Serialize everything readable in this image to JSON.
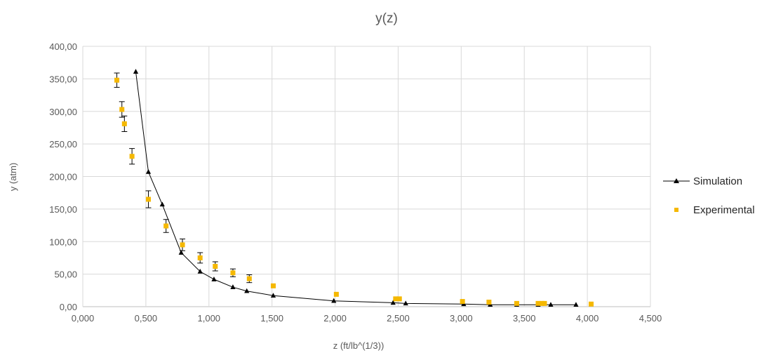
{
  "chart_data": {
    "type": "scatter",
    "title": "y(z)",
    "xlabel": "z (ft/lb^(1/3))",
    "ylabel": "y (atm)",
    "xlim": [
      0,
      4.5
    ],
    "ylim": [
      0,
      400
    ],
    "x_ticks": [
      "0,000",
      "0,500",
      "1,000",
      "1,500",
      "2,000",
      "2,500",
      "3,000",
      "3,500",
      "4,000",
      "4,500"
    ],
    "y_ticks": [
      "0,00",
      "50,00",
      "100,00",
      "150,00",
      "200,00",
      "250,00",
      "300,00",
      "350,00",
      "400,00"
    ],
    "x_tick_values": [
      0,
      0.5,
      1.0,
      1.5,
      2.0,
      2.5,
      3.0,
      3.5,
      4.0,
      4.5
    ],
    "y_tick_values": [
      0,
      50,
      100,
      150,
      200,
      250,
      300,
      350,
      400
    ],
    "grid": true,
    "legend": "right",
    "series": [
      {
        "name": "Simulation",
        "style": "line-with-triangle-markers",
        "color": "#000000",
        "x": [
          0.42,
          0.52,
          0.63,
          0.78,
          0.93,
          1.04,
          1.19,
          1.3,
          1.51,
          1.99,
          2.46,
          2.56,
          3.02,
          3.23,
          3.44,
          3.61,
          3.71,
          3.91
        ],
        "y": [
          361,
          207,
          157,
          83,
          54,
          42,
          30,
          24,
          17,
          9,
          6,
          5,
          4,
          3,
          3,
          3,
          3,
          3
        ]
      },
      {
        "name": "Experimental",
        "style": "square-markers-with-error-bars",
        "color": "#f5b800",
        "x": [
          0.27,
          0.31,
          0.33,
          0.39,
          0.52,
          0.66,
          0.79,
          0.93,
          1.05,
          1.19,
          1.32,
          1.51,
          2.01,
          2.48,
          2.51,
          3.01,
          3.22,
          3.44,
          3.61,
          3.64,
          3.66,
          4.03
        ],
        "y": [
          348,
          303,
          281,
          231,
          165,
          124,
          95,
          75,
          62,
          52,
          43,
          32,
          19,
          12,
          12,
          8,
          7,
          5,
          5,
          5,
          5,
          4
        ],
        "error": [
          11,
          12,
          12,
          12,
          13,
          10,
          9,
          8,
          7,
          6,
          6,
          0,
          0,
          0,
          0,
          0,
          0,
          0,
          0,
          0,
          0,
          0
        ]
      }
    ]
  }
}
